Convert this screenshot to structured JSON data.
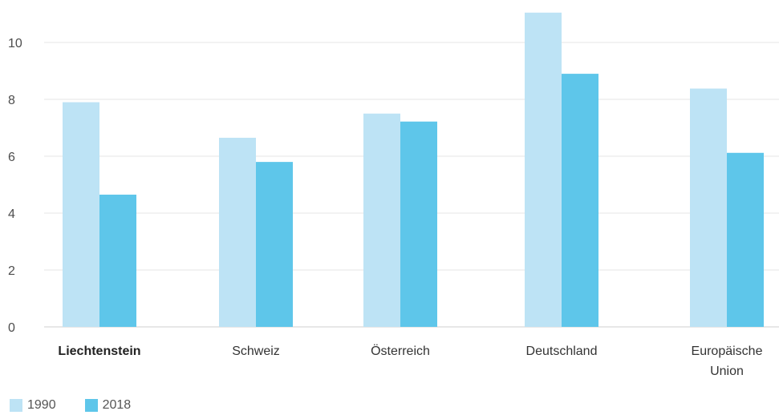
{
  "chart_data": {
    "type": "bar",
    "categories": [
      "Liechtenstein",
      "Schweiz",
      "Österreich",
      "Deutschland",
      "Europäische Union"
    ],
    "category_lines": [
      [
        "Liechtenstein"
      ],
      [
        "Schweiz"
      ],
      [
        "Österreich"
      ],
      [
        "Deutschland"
      ],
      [
        "Europäische",
        "Union"
      ]
    ],
    "highlighted_category": "Liechtenstein",
    "series": [
      {
        "name": "1990",
        "color": "#bde3f5",
        "values": [
          7.9,
          6.65,
          7.5,
          11.05,
          8.38
        ]
      },
      {
        "name": "2018",
        "color": "#5ec6ea",
        "values": [
          4.65,
          5.8,
          7.22,
          8.9,
          6.12
        ]
      }
    ],
    "yticks": [
      0,
      2,
      4,
      6,
      8,
      10
    ],
    "ylim": [
      0,
      11.1
    ],
    "grid": true,
    "legend_position": "bottom-left",
    "title": "",
    "xlabel": "",
    "ylabel": ""
  }
}
